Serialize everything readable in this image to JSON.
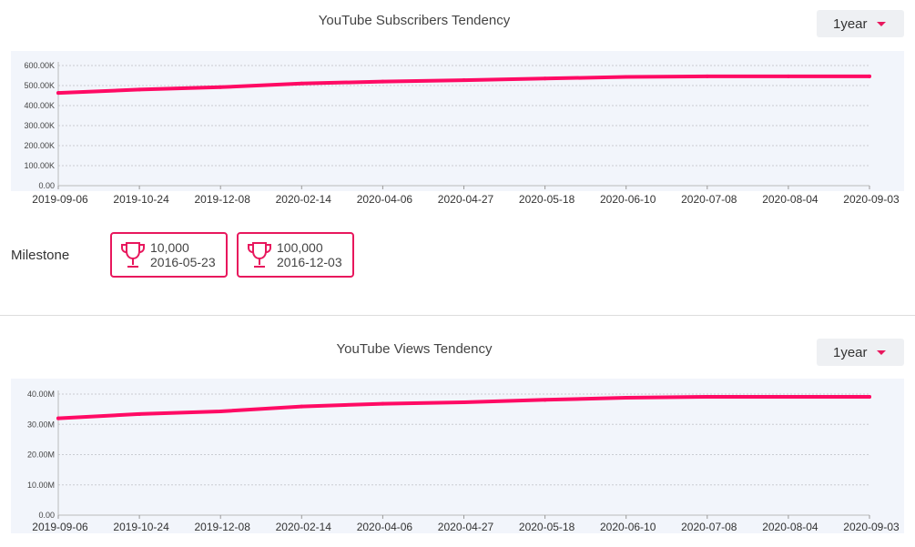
{
  "subscribers": {
    "title": "YouTube Subscribers Tendency",
    "period": "1year"
  },
  "milestone": {
    "label": "Milestone",
    "items": [
      {
        "value": "10,000",
        "date": "2016-05-23"
      },
      {
        "value": "100,000",
        "date": "2016-12-03"
      }
    ]
  },
  "views": {
    "title": "YouTube Views Tendency",
    "period": "1year"
  },
  "colors": {
    "line": "#ff0a64",
    "accent": "#e8175d",
    "panel": "#f2f5fb"
  },
  "chart_data": [
    {
      "type": "line",
      "title": "YouTube Subscribers Tendency",
      "y_ticks": [
        "0.00",
        "100.00K",
        "200.00K",
        "300.00K",
        "400.00K",
        "500.00K",
        "600.00K"
      ],
      "ylim": [
        0,
        600000
      ],
      "x_ticks": [
        "2019-09-06",
        "2019-10-24",
        "2019-12-08",
        "2020-02-14",
        "2020-04-06",
        "2020-04-27",
        "2020-05-18",
        "2020-06-10",
        "2020-07-08",
        "2020-08-04",
        "2020-09-03"
      ],
      "x": [
        "2019-09-06",
        "2019-10-24",
        "2019-12-08",
        "2020-02-14",
        "2020-04-06",
        "2020-04-27",
        "2020-05-18",
        "2020-06-10",
        "2020-07-08",
        "2020-08-04",
        "2020-09-03"
      ],
      "values": [
        463000,
        480000,
        492000,
        510000,
        520000,
        527000,
        535000,
        543000,
        546000,
        546000,
        546000
      ],
      "grid": true
    },
    {
      "type": "line",
      "title": "YouTube Views Tendency",
      "y_ticks": [
        "0.00",
        "10.00M",
        "20.00M",
        "30.00M",
        "40.00M"
      ],
      "ylim": [
        0,
        40000000
      ],
      "x_ticks": [
        "2019-09-06",
        "2019-10-24",
        "2019-12-08",
        "2020-02-14",
        "2020-04-06",
        "2020-04-27",
        "2020-05-18",
        "2020-06-10",
        "2020-07-08",
        "2020-08-04",
        "2020-09-03"
      ],
      "x": [
        "2019-09-06",
        "2019-10-24",
        "2019-12-08",
        "2020-02-14",
        "2020-04-06",
        "2020-04-27",
        "2020-05-18",
        "2020-06-10",
        "2020-07-08",
        "2020-08-04",
        "2020-09-03"
      ],
      "values": [
        32000000,
        33400000,
        34300000,
        35900000,
        36800000,
        37300000,
        38100000,
        38800000,
        39100000,
        39100000,
        39100000
      ],
      "grid": true
    }
  ]
}
